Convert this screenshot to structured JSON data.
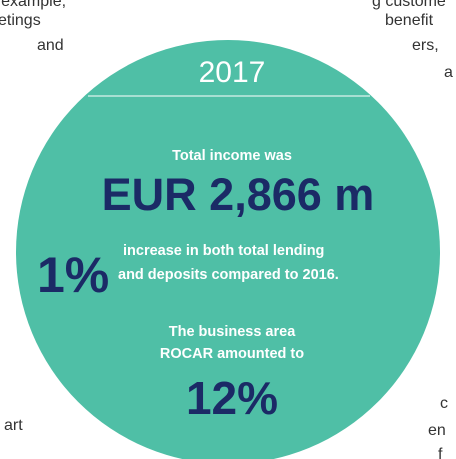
{
  "background_text": {
    "left": [
      "n to example,",
      "etings",
      "and",
      "art"
    ],
    "right": [
      "g custome",
      "benefit",
      "ers,",
      "a",
      "c",
      "en",
      "f"
    ]
  },
  "infographic": {
    "year": "2017",
    "income_label": "Total income was",
    "income_value": "EUR 2,866 m",
    "growth_value": "1%",
    "growth_text": [
      "increase in both total lending",
      "and deposits compared to 2016."
    ],
    "rocar_label": [
      "The business area",
      "ROCAR amounted to"
    ],
    "rocar_value": "12%"
  }
}
